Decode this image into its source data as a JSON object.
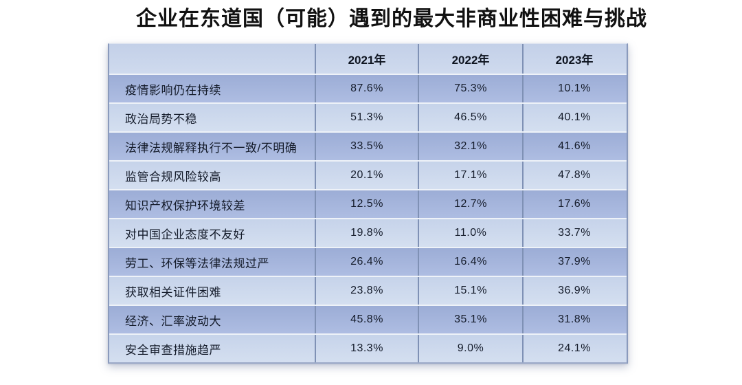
{
  "title": "企业在东道国（可能）遇到的最大非商业性困难与挑战",
  "table": {
    "corner_label": "",
    "columns": [
      "2021年",
      "2022年",
      "2023年"
    ],
    "rows": [
      {
        "label": "疫情影响仍在持续",
        "values": [
          "87.6%",
          "75.3%",
          "10.1%"
        ]
      },
      {
        "label": "政治局势不稳",
        "values": [
          "51.3%",
          "46.5%",
          "40.1%"
        ]
      },
      {
        "label": "法律法规解释执行不一致/不明确",
        "values": [
          "33.5%",
          "32.1%",
          "41.6%"
        ]
      },
      {
        "label": "监管合规风险较高",
        "values": [
          "20.1%",
          "17.1%",
          "47.8%"
        ]
      },
      {
        "label": "知识产权保护环境较差",
        "values": [
          "12.5%",
          "12.7%",
          "17.6%"
        ]
      },
      {
        "label": "对中国企业态度不友好",
        "values": [
          "19.8%",
          "11.0%",
          "33.7%"
        ]
      },
      {
        "label": "劳工、环保等法律法规过严",
        "values": [
          "26.4%",
          "16.4%",
          "37.9%"
        ]
      },
      {
        "label": "获取相关证件困难",
        "values": [
          "23.8%",
          "15.1%",
          "36.9%"
        ]
      },
      {
        "label": "经济、汇率波动大",
        "values": [
          "45.8%",
          "35.1%",
          "31.8%"
        ]
      },
      {
        "label": "安全审查措施趋严",
        "values": [
          "13.3%",
          "9.0%",
          "24.1%"
        ]
      }
    ]
  },
  "colors": {
    "row_dark": "#a8b7dd",
    "row_light": "#ccd8ec",
    "header_bg": "#c9d5eb",
    "grid_vertical": "#7f91b5",
    "row_separator": "#eef2f8",
    "text": "#141b2a"
  },
  "chart_data": {
    "type": "table",
    "title": "企业在东道国（可能）遇到的最大非商业性困难与挑战",
    "categories": [
      "疫情影响仍在持续",
      "政治局势不稳",
      "法律法规解释执行不一致/不明确",
      "监管合规风险较高",
      "知识产权保护环境较差",
      "对中国企业态度不友好",
      "劳工、环保等法律法规过严",
      "获取相关证件困难",
      "经济、汇率波动大",
      "安全审查措施趋严"
    ],
    "series": [
      {
        "name": "2021年",
        "values": [
          87.6,
          51.3,
          33.5,
          20.1,
          12.5,
          19.8,
          26.4,
          23.8,
          45.8,
          13.3
        ]
      },
      {
        "name": "2022年",
        "values": [
          75.3,
          46.5,
          32.1,
          17.1,
          12.7,
          11.0,
          16.4,
          15.1,
          35.1,
          9.0
        ]
      },
      {
        "name": "2023年",
        "values": [
          10.1,
          40.1,
          41.6,
          47.8,
          17.6,
          33.7,
          37.9,
          36.9,
          31.8,
          24.1
        ]
      }
    ],
    "unit": "%",
    "layout": "rows are challenge categories, columns are survey years; alternating light/dark blue banded rows"
  }
}
